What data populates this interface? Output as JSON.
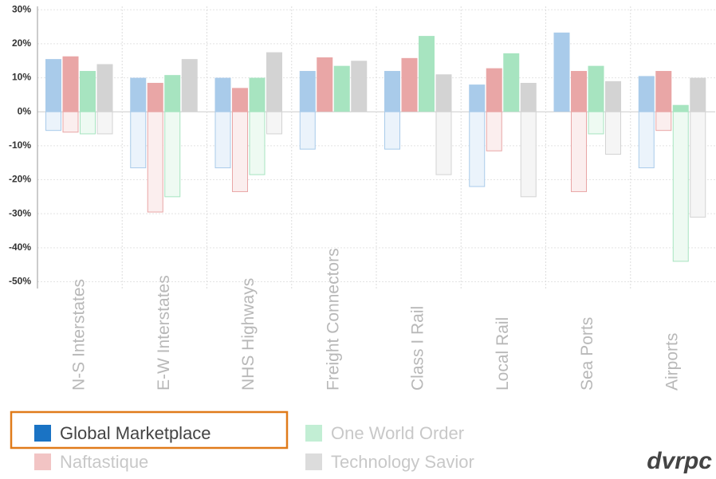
{
  "chart_data": {
    "type": "bar",
    "categories": [
      "N-S Interstates",
      "E-W Interstates",
      "NHS Highways",
      "Freight Connectors",
      "Class I Rail",
      "Local Rail",
      "Sea Ports",
      "Airports"
    ],
    "series": [
      {
        "name": "Global Marketplace",
        "color": "#a9cbea",
        "negative_color": "#ebf3fb",
        "negative_border": "#a9cbea",
        "legend_color": "#1a73c4",
        "legend_text_color": "#444",
        "values": [
          15.5,
          10,
          10,
          12,
          12,
          8,
          23.3,
          10.5
        ],
        "negative_values": [
          -5.5,
          -16.5,
          -16.5,
          -11,
          -11,
          -22,
          0,
          -16.5
        ]
      },
      {
        "name": "Naftastique",
        "color": "#e9a6a6",
        "negative_color": "#fbeeee",
        "negative_border": "#e9a6a6",
        "legend_color": "#f2c4c4",
        "legend_text_color": "#c8c8c8",
        "values": [
          16.3,
          8.5,
          7,
          16,
          15.8,
          12.8,
          12,
          12
        ],
        "negative_values": [
          -6,
          -29.5,
          -23.5,
          0,
          0,
          -11.5,
          -23.5,
          -5.5
        ]
      },
      {
        "name": "One World Order",
        "color": "#a7e4c0",
        "negative_color": "#eefaf2",
        "negative_border": "#a7e4c0",
        "legend_color": "#c2eed4",
        "legend_text_color": "#c8c8c8",
        "values": [
          12,
          10.8,
          10,
          13.5,
          22.3,
          17.2,
          13.5,
          2
        ],
        "negative_values": [
          -6.5,
          -25,
          -18.5,
          0,
          0,
          0,
          -6.5,
          -44
        ]
      },
      {
        "name": "Technology Savior",
        "color": "#d3d3d3",
        "negative_color": "#f5f5f5",
        "negative_border": "#d3d3d3",
        "legend_color": "#dcdcdc",
        "legend_text_color": "#c8c8c8",
        "values": [
          14,
          15.5,
          17.5,
          15,
          11,
          8.5,
          9,
          10
        ],
        "negative_values": [
          -6.5,
          0,
          -6.5,
          0,
          -18.5,
          -25,
          -12.5,
          -31
        ]
      }
    ],
    "ylim": [
      -52,
      31
    ],
    "yticks": [
      {
        "value": 30,
        "label": "30%"
      },
      {
        "value": 20,
        "label": "20%"
      },
      {
        "value": 10,
        "label": "10%"
      },
      {
        "value": 0,
        "label": "0%"
      },
      {
        "value": -10,
        "label": "-10%"
      },
      {
        "value": -20,
        "label": "-20%"
      },
      {
        "value": -30,
        "label": "-30%"
      },
      {
        "value": -40,
        "label": "-40%"
      },
      {
        "value": -50,
        "label": "-50%"
      }
    ],
    "grid": true,
    "highlight_color": "#e07b1a",
    "logo": "dvrpc"
  }
}
